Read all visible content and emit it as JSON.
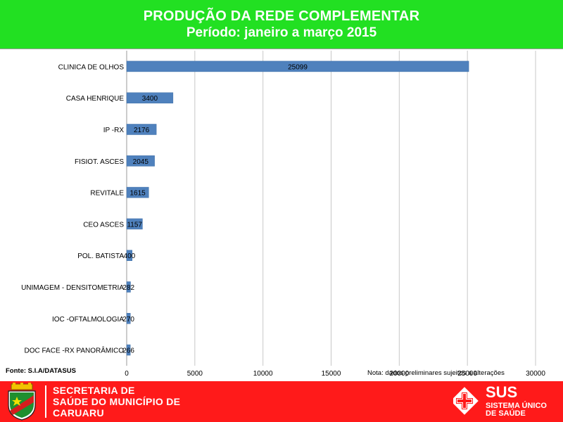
{
  "header": {
    "title": "PRODUÇÃO DA REDE COMPLEMENTAR",
    "subtitle": "Período: janeiro a março 2015"
  },
  "chart_data": {
    "type": "bar",
    "orientation": "horizontal",
    "categories": [
      "CLINICA DE OLHOS",
      "CASA HENRIQUE",
      "IP -RX",
      "FISIOT. ASCES",
      "REVITALE",
      "CEO ASCES",
      "POL. BATISTA",
      "UNIMAGEM - DENSITOMETRIA",
      "IOC -OFTALMOLOGIA",
      "DOC FACE -RX PANORÂMICO"
    ],
    "values": [
      25099,
      3400,
      2176,
      2045,
      1615,
      1157,
      400,
      282,
      270,
      266
    ],
    "data_labels": [
      "25099",
      "3400",
      "2176",
      "2045",
      "1615",
      "1157",
      "400",
      "282",
      "270",
      "266"
    ],
    "xlim": [
      0,
      30000
    ],
    "x_ticks": [
      "0",
      "5000",
      "10000",
      "15000",
      "20000",
      "25000",
      "30000"
    ],
    "grid": true,
    "bar_color": "#4f81bd"
  },
  "source": "Fonte: S.I.A/DATASUS",
  "note": "Nota: dados preliminares sujeitos a alterações",
  "footer": {
    "secretaria_lines": [
      "SECRETARIA DE",
      "SAÚDE DO MUNICÍPIO DE",
      "CARUARU"
    ],
    "sus_abbr": "SUS",
    "sus_lines": [
      "SISTEMA ÚNICO",
      "DE SAÚDE"
    ]
  }
}
